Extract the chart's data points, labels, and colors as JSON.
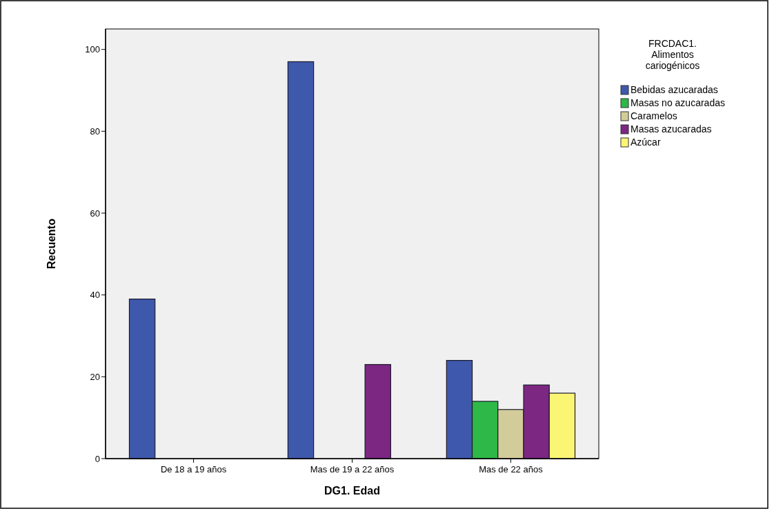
{
  "chart_data": {
    "type": "bar",
    "xlabel": "DG1. Edad",
    "ylabel": "Recuento",
    "legend_title": "FRCDAC1.\nAlimentos\ncariogénicos",
    "categories": [
      "De 18 a 19 años",
      "Mas de 19 a 22 años",
      "Mas de 22 años"
    ],
    "series": [
      {
        "name": "Bebidas azucaradas",
        "color": "#3e58ac",
        "values": [
          39,
          97,
          24
        ]
      },
      {
        "name": "Masas no azucaradas",
        "color": "#2eb848",
        "values": [
          null,
          null,
          14
        ]
      },
      {
        "name": "Caramelos",
        "color": "#d2cc9a",
        "values": [
          null,
          null,
          12
        ]
      },
      {
        "name": "Masas azucaradas",
        "color": "#7c2782",
        "values": [
          null,
          23,
          18
        ]
      },
      {
        "name": "Azúcar",
        "color": "#fbf574",
        "values": [
          null,
          null,
          16
        ]
      }
    ],
    "ylim": [
      0,
      105
    ],
    "yticks": [
      0,
      20,
      40,
      60,
      80,
      100
    ],
    "grid": false,
    "legend": "right"
  }
}
